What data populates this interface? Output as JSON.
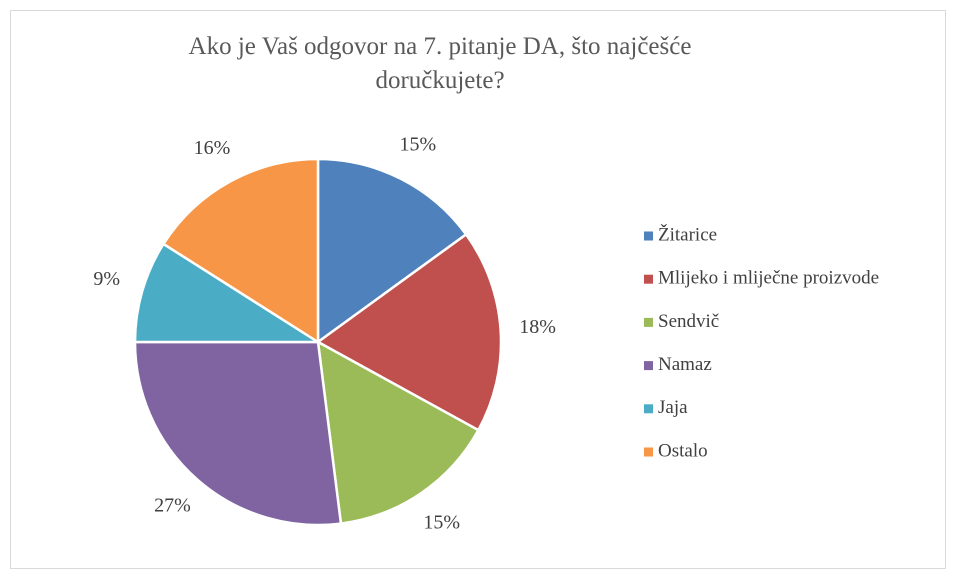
{
  "chart_data": {
    "type": "pie",
    "title": "Ako je Vaš odgovor na 7. pitanje DA, što najčešće doručkujete?",
    "categories": [
      "Žitarice",
      "Mlijeko i mliječne proizvode",
      "Sendvič",
      "Namaz",
      "Jaja",
      "Ostalo"
    ],
    "values": [
      15,
      18,
      15,
      27,
      9,
      16
    ],
    "value_labels": [
      "15%",
      "18%",
      "15%",
      "27%",
      "9%",
      "16%"
    ],
    "colors": [
      "#4f81bd",
      "#c0504d",
      "#9bbb59",
      "#8064a2",
      "#4bacc6",
      "#f79646"
    ],
    "legend": "right"
  }
}
